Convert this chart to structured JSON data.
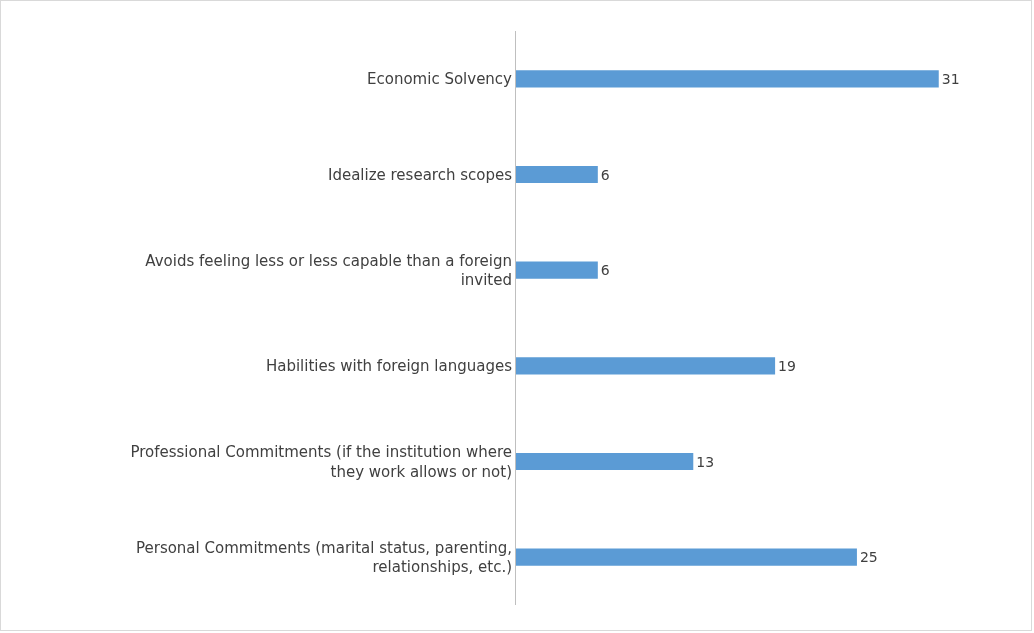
{
  "chart_data": {
    "type": "bar",
    "orientation": "horizontal",
    "categories": [
      "Economic Solvency",
      "Idealize research scopes",
      "Avoids feeling less or less capable than a foreign invited",
      "Habilities with foreign languages",
      "Professional Commitments (if the institution where they work allows or not)",
      "Personal Commitments (marital status, parenting, relationships, etc.)"
    ],
    "values": [
      31,
      6,
      6,
      19,
      13,
      25
    ],
    "color": "#5b9bd5",
    "data_labels": true,
    "grid": false,
    "legend": false
  }
}
